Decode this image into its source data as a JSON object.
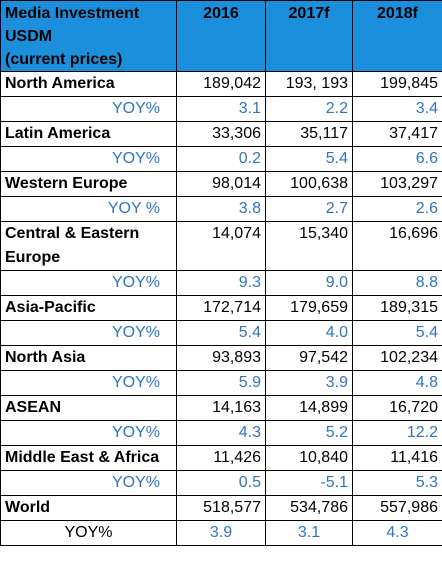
{
  "header": {
    "label_lines": [
      "Media Investment",
      "USDM",
      "(current prices)"
    ],
    "years": [
      "2016",
      "2017f",
      "2018f"
    ]
  },
  "rows": [
    {
      "region": "North America",
      "values": [
        "189,042",
        "193, 193",
        "199,845"
      ],
      "yoy_label": "YOY%",
      "yoy": [
        "3.1",
        "2.2",
        "3.4"
      ]
    },
    {
      "region": "Latin America",
      "values": [
        "33,306",
        "35,117",
        "37,417"
      ],
      "yoy_label": "YOY%",
      "yoy": [
        "0.2",
        "5.4",
        "6.6"
      ]
    },
    {
      "region": "Western Europe",
      "values": [
        "98,014",
        "100,638",
        "103,297"
      ],
      "yoy_label": "YOY %",
      "yoy": [
        "3.8",
        "2.7",
        "2.6"
      ]
    },
    {
      "region": "Central & Eastern Europe",
      "values": [
        "14,074",
        "15,340",
        "16,696"
      ],
      "yoy_label": "YOY%",
      "yoy": [
        "9.3",
        "9.0",
        "8.8"
      ]
    },
    {
      "region": "Asia-Pacific",
      "values": [
        "172,714",
        "179,659",
        "189,315"
      ],
      "yoy_label": "YOY%",
      "yoy": [
        "5.4",
        "4.0",
        "5.4"
      ]
    },
    {
      "region": "North Asia",
      "values": [
        "93,893",
        "97,542",
        "102,234"
      ],
      "yoy_label": "YOY%",
      "yoy": [
        "5.9",
        "3.9",
        "4.8"
      ]
    },
    {
      "region": "ASEAN",
      "values": [
        "14,163",
        "14,899",
        "16,720"
      ],
      "yoy_label": "YOY%",
      "yoy": [
        "4.3",
        "5.2",
        "12.2"
      ]
    },
    {
      "region": "Middle East & Africa",
      "values": [
        "11,426",
        "10,840",
        "11,416"
      ],
      "yoy_label": "YOY%",
      "yoy": [
        "0.5",
        "-5.1",
        "5.3"
      ]
    },
    {
      "region": "World",
      "values": [
        "518,577",
        "534,786",
        "557,986"
      ],
      "yoy_label": "YOY%",
      "yoy": [
        "3.9",
        "3.1",
        "4.3"
      ]
    }
  ],
  "colors": {
    "header_bg": "#1c8fdc",
    "yoy_text": "#2e75c4"
  }
}
